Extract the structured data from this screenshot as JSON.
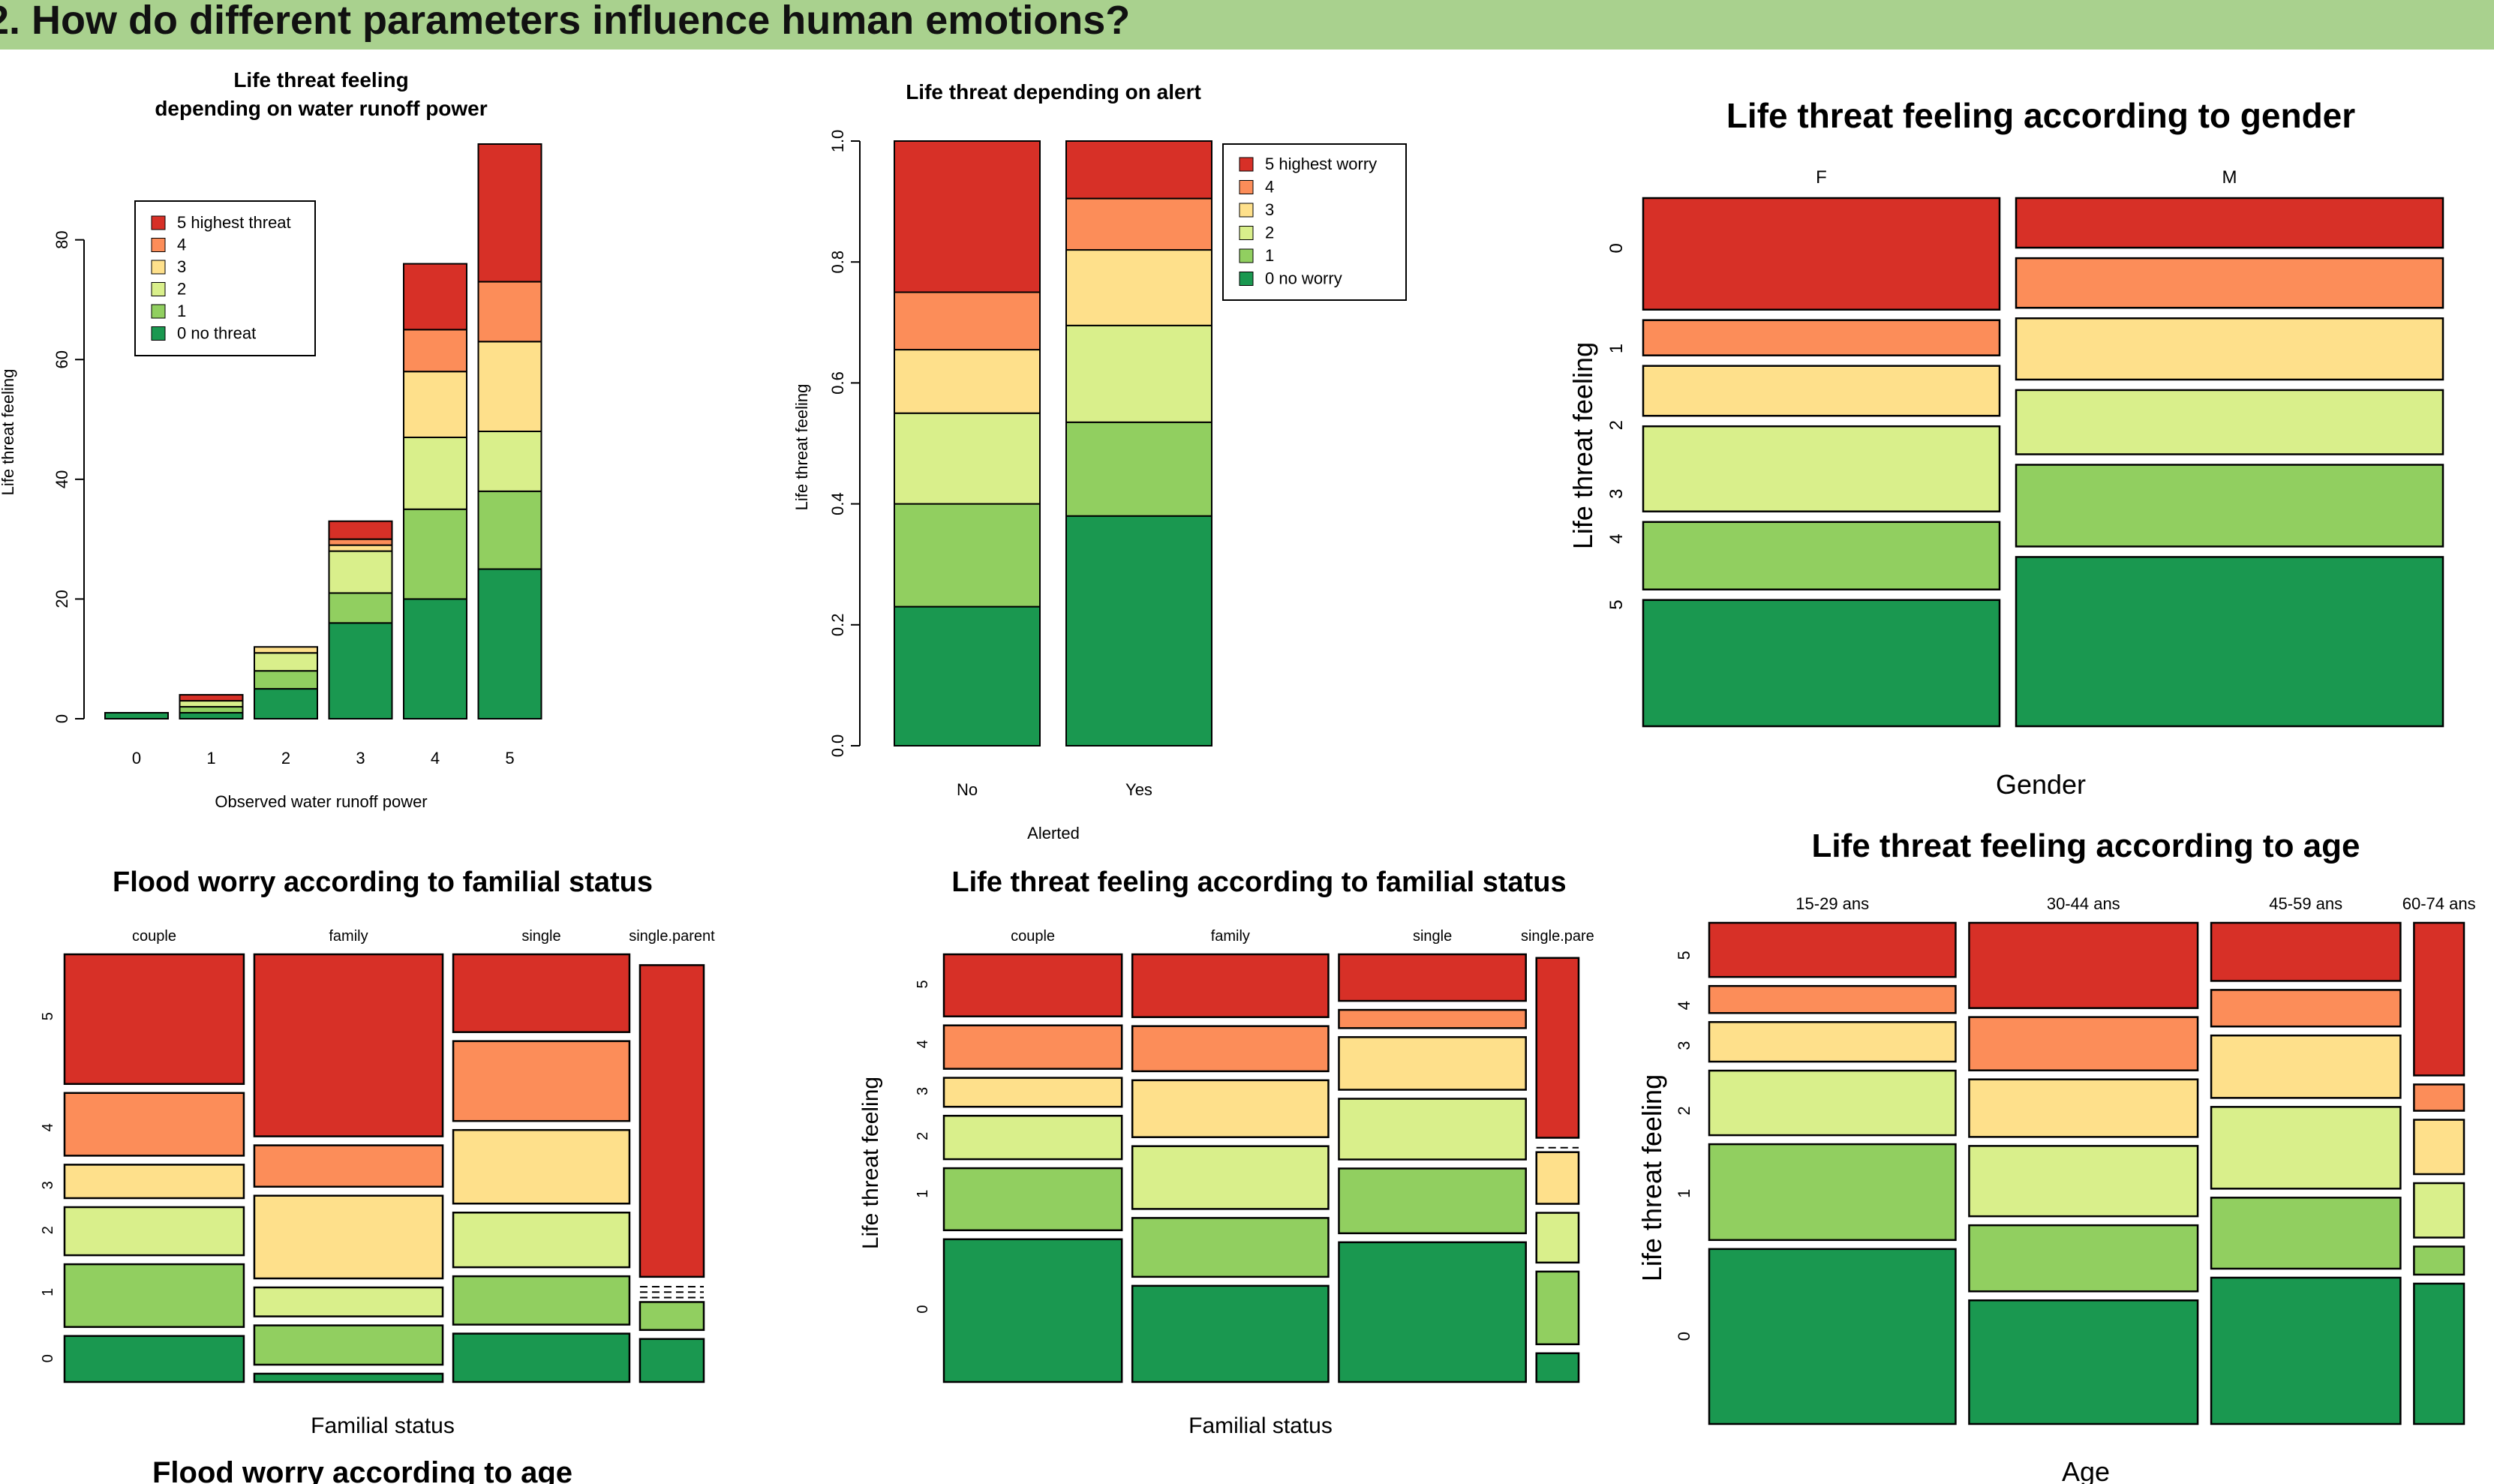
{
  "header": {
    "title": "2. How do different parameters influence human emotions?"
  },
  "colors": [
    "#1a9850",
    "#91cf60",
    "#d9ef8b",
    "#fee08b",
    "#fc8d59",
    "#d73027"
  ],
  "chart_data": [
    {
      "id": "runoff",
      "type": "bar",
      "stacked": true,
      "title": "Life threat feeling\ndepending on water runoff power",
      "xlabel": "Observed water runoff power",
      "ylabel": "Life threat feeling",
      "ylim": [
        0,
        96
      ],
      "yticks": [
        0,
        20,
        40,
        60,
        80
      ],
      "categories": [
        "0",
        "1",
        "2",
        "3",
        "4",
        "5"
      ],
      "series": [
        {
          "name": "0 no threat",
          "values": [
            1,
            1,
            5,
            16,
            20,
            25
          ]
        },
        {
          "name": "1",
          "values": [
            0,
            1,
            3,
            5,
            15,
            13
          ]
        },
        {
          "name": "2",
          "values": [
            0,
            1,
            3,
            7,
            12,
            10
          ]
        },
        {
          "name": "3",
          "values": [
            0,
            0,
            1,
            1,
            11,
            15
          ]
        },
        {
          "name": "4",
          "values": [
            0,
            0,
            0,
            1,
            7,
            10
          ]
        },
        {
          "name": "5 highest threat",
          "values": [
            0,
            1,
            0,
            3,
            11,
            23
          ]
        }
      ],
      "legend": "top-left"
    },
    {
      "id": "alert",
      "type": "bar",
      "stacked": true,
      "title": "Life threat depending on alert",
      "xlabel": "Alerted",
      "ylabel": "Life threat feeling",
      "ylim": [
        0,
        1
      ],
      "yticks": [
        "0.0",
        "0.2",
        "0.4",
        "0.6",
        "0.8",
        "1.0"
      ],
      "categories": [
        "No",
        "Yes"
      ],
      "series": [
        {
          "name": "0 no worry",
          "values": [
            0.23,
            0.38
          ]
        },
        {
          "name": "1",
          "values": [
            0.17,
            0.155
          ]
        },
        {
          "name": "2",
          "values": [
            0.15,
            0.16
          ]
        },
        {
          "name": "3",
          "values": [
            0.105,
            0.125
          ]
        },
        {
          "name": "4",
          "values": [
            0.095,
            0.085
          ]
        },
        {
          "name": "5 highest worry",
          "values": [
            0.25,
            0.095
          ]
        }
      ],
      "legend": "top-right"
    },
    {
      "id": "gender",
      "type": "mosaic",
      "title": "Life threat feeling according to gender",
      "xlabel": "Gender",
      "ylabel": "Life threat feeling",
      "categories": [
        "F",
        "M"
      ],
      "category_widths": [
        0.455,
        0.545
      ],
      "row_labels": [
        "0",
        "1",
        "2",
        "3",
        "4",
        "5"
      ],
      "row_label_positions": [
        0.095,
        0.285,
        0.43,
        0.56,
        0.645,
        0.77
      ],
      "columns": [
        [
          0.215,
          0.115,
          0.145,
          0.085,
          0.06,
          0.19
        ],
        [
          0.29,
          0.14,
          0.11,
          0.105,
          0.085,
          0.085
        ]
      ]
    },
    {
      "id": "worry_familial",
      "type": "mosaic",
      "title": "Flood worry according to familial status",
      "xlabel": "Familial status",
      "ylabel": "",
      "categories": [
        "couple",
        "family",
        "single",
        "single.parent"
      ],
      "category_widths": [
        0.295,
        0.31,
        0.29,
        0.105
      ],
      "row_labels": [
        "0",
        "1",
        "2",
        "3",
        "4",
        "5"
      ],
      "row_label_positions": [
        0.945,
        0.79,
        0.645,
        0.54,
        0.405,
        0.145
      ],
      "columns": [
        [
          0.11,
          0.15,
          0.115,
          0.08,
          0.15,
          0.31
        ],
        [
          0.02,
          0.095,
          0.07,
          0.2,
          0.1,
          0.44
        ],
        [
          0.115,
          0.115,
          0.13,
          0.175,
          0.19,
          0.185
        ],
        [
          0.1,
          0.065,
          0,
          0,
          0,
          0.725
        ]
      ]
    },
    {
      "id": "threat_familial",
      "type": "mosaic",
      "title": "Life threat feeling according to familial status",
      "xlabel": "Familial status",
      "ylabel": "Life threat feeling",
      "categories": [
        "couple",
        "family",
        "single",
        "single.pare"
      ],
      "category_widths": [
        0.295,
        0.325,
        0.31,
        0.07
      ],
      "row_labels": [
        "0",
        "1",
        "2",
        "3",
        "4",
        "5"
      ],
      "row_label_positions": [
        0.83,
        0.56,
        0.425,
        0.32,
        0.21,
        0.07
      ],
      "columns": [
        [
          0.345,
          0.15,
          0.105,
          0.07,
          0.105,
          0.15
        ],
        [
          0.245,
          0.15,
          0.16,
          0.145,
          0.115,
          0.16
        ],
        [
          0.345,
          0.16,
          0.15,
          0.13,
          0.045,
          0.115
        ],
        [
          0.075,
          0.19,
          0.13,
          0.135,
          0,
          0.47
        ]
      ]
    },
    {
      "id": "threat_age",
      "type": "mosaic",
      "title": "Life threat feeling according to age",
      "xlabel": "Age",
      "ylabel": "Life threat feeling",
      "categories": [
        "15-29 ans",
        "30-44 ans",
        "45-59 ans",
        "60-74 ans"
      ],
      "category_widths": [
        0.345,
        0.32,
        0.265,
        0.07
      ],
      "row_labels": [
        "0",
        "1",
        "2",
        "3",
        "4",
        "5"
      ],
      "row_label_positions": [
        0.825,
        0.54,
        0.375,
        0.245,
        0.165,
        0.065
      ],
      "columns": [
        [
          0.42,
          0.23,
          0.155,
          0.095,
          0.065,
          0.13
        ],
        [
          0.29,
          0.155,
          0.165,
          0.135,
          0.125,
          0.2
        ],
        [
          0.34,
          0.165,
          0.19,
          0.145,
          0.085,
          0.135
        ],
        [
          0.4,
          0.08,
          0.155,
          0.155,
          0.075,
          0.435
        ]
      ]
    }
  ],
  "footer_title": "Flood worry according to age"
}
